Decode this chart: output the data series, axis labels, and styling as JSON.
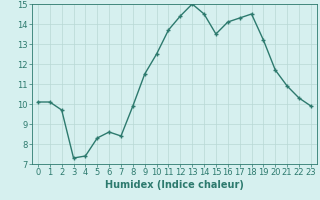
{
  "x": [
    0,
    1,
    2,
    3,
    4,
    5,
    6,
    7,
    8,
    9,
    10,
    11,
    12,
    13,
    14,
    15,
    16,
    17,
    18,
    19,
    20,
    21,
    22,
    23
  ],
  "y": [
    10.1,
    10.1,
    9.7,
    7.3,
    7.4,
    8.3,
    8.6,
    8.4,
    9.9,
    11.5,
    12.5,
    13.7,
    14.4,
    15.0,
    14.5,
    13.5,
    14.1,
    14.3,
    14.5,
    13.2,
    11.7,
    10.9,
    10.3,
    9.9
  ],
  "line_color": "#2d7a6e",
  "marker": "+",
  "marker_size": 3.5,
  "bg_color": "#d6f0ef",
  "grid_color": "#b8d8d5",
  "xlabel": "Humidex (Indice chaleur)",
  "ylim": [
    7,
    15
  ],
  "xlim_min": -0.5,
  "xlim_max": 23.5,
  "yticks": [
    7,
    8,
    9,
    10,
    11,
    12,
    13,
    14,
    15
  ],
  "xticks": [
    0,
    1,
    2,
    3,
    4,
    5,
    6,
    7,
    8,
    9,
    10,
    11,
    12,
    13,
    14,
    15,
    16,
    17,
    18,
    19,
    20,
    21,
    22,
    23
  ],
  "xlabel_fontsize": 7,
  "tick_fontsize": 6,
  "line_width": 1.0
}
